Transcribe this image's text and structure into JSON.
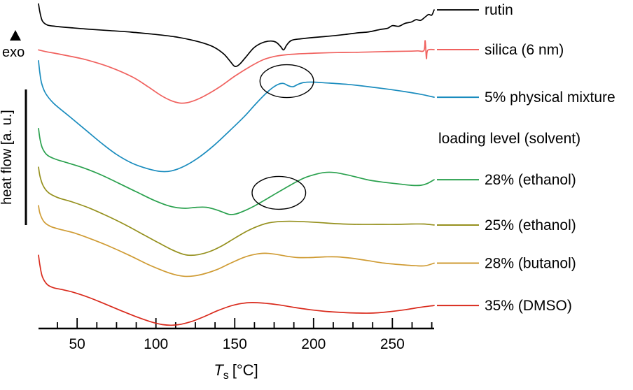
{
  "figure": {
    "exo_label": "exo",
    "heat_flow_label": "heat flow [a. u.]",
    "x_label_symbol": "T",
    "x_label_subscript": "s",
    "x_label_unit": "[°C]"
  },
  "chart_data": {
    "type": "line",
    "xlabel": "Ts [°C]",
    "ylabel": "heat flow [a. u.]",
    "exo_direction": "up",
    "grid": false,
    "legend_position": "right",
    "x_range": [
      25.5,
      276.5
    ],
    "y_range_au": [
      0,
      100
    ],
    "x_major_ticks": [
      50,
      100,
      150,
      200,
      250
    ],
    "x_minor_ticks_range": [
      37.5,
      275,
      12.5
    ],
    "legend_header": {
      "label": "loading level (solvent)",
      "after_index": 2
    },
    "annotations": [
      {
        "name": "ellipse-physical-mixture-melting",
        "cx": 183,
        "cy_au": 75.3,
        "rx_c": 17,
        "ry_au": 5
      },
      {
        "name": "ellipse-28-ethanol-region",
        "cx": 178,
        "cy_au": 41.3,
        "rx_c": 17,
        "ry_au": 5
      }
    ],
    "series": [
      {
        "name": "rutin",
        "label": "rutin",
        "color": "#000000",
        "points": [
          [
            25.5,
            98.8
          ],
          [
            26.5,
            96.0
          ],
          [
            28,
            93.6
          ],
          [
            31,
            92.4
          ],
          [
            36,
            92.0
          ],
          [
            45,
            91.6
          ],
          [
            55,
            91.2
          ],
          [
            70,
            90.7
          ],
          [
            85,
            90.2
          ],
          [
            100,
            89.5
          ],
          [
            112,
            88.8
          ],
          [
            122,
            87.9
          ],
          [
            130,
            86.9
          ],
          [
            137,
            85.6
          ],
          [
            143,
            83.6
          ],
          [
            147,
            81.4
          ],
          [
            150,
            79.8
          ],
          [
            153,
            80.4
          ],
          [
            157,
            82.6
          ],
          [
            162,
            85.4
          ],
          [
            167,
            86.9
          ],
          [
            172,
            87.5
          ],
          [
            176,
            87.2
          ],
          [
            179,
            85.9
          ],
          [
            181,
            84.8
          ],
          [
            183,
            86.3
          ],
          [
            186,
            87.7
          ],
          [
            192,
            88.2
          ],
          [
            200,
            88.6
          ],
          [
            210,
            89.0
          ],
          [
            220,
            89.5
          ],
          [
            228,
            90.0
          ],
          [
            235,
            90.3
          ],
          [
            242,
            91.0
          ],
          [
            247,
            91.4
          ],
          [
            250,
            92.2
          ],
          [
            254,
            92.0
          ],
          [
            258,
            92.9
          ],
          [
            262,
            93.3
          ],
          [
            265,
            94.0
          ],
          [
            268,
            93.8
          ],
          [
            271,
            94.9
          ],
          [
            273,
            95.6
          ],
          [
            275,
            95.4
          ],
          [
            276.5,
            97.0
          ]
        ]
      },
      {
        "name": "silica-6nm",
        "label": "silica (6 nm)",
        "color": "#f0615e",
        "points": [
          [
            25.5,
            84.8
          ],
          [
            30,
            84.3
          ],
          [
            40,
            83.4
          ],
          [
            55,
            81.9
          ],
          [
            70,
            79.7
          ],
          [
            85,
            76.6
          ],
          [
            95,
            73.6
          ],
          [
            103,
            71.0
          ],
          [
            110,
            69.3
          ],
          [
            116,
            68.6
          ],
          [
            122,
            69.0
          ],
          [
            130,
            70.6
          ],
          [
            140,
            73.4
          ],
          [
            150,
            76.8
          ],
          [
            160,
            79.8
          ],
          [
            168,
            81.8
          ],
          [
            175,
            82.8
          ],
          [
            182,
            83.3
          ],
          [
            190,
            83.6
          ],
          [
            200,
            83.8
          ],
          [
            215,
            84.0
          ],
          [
            230,
            84.1
          ],
          [
            245,
            84.3
          ],
          [
            258,
            84.4
          ],
          [
            266,
            84.5
          ],
          [
            270,
            84.6
          ],
          [
            270.8,
            87.6
          ],
          [
            271.6,
            82.2
          ],
          [
            272.4,
            84.7
          ],
          [
            276.5,
            84.9
          ]
        ]
      },
      {
        "name": "physical-mixture-5",
        "label": "5% physical mixture",
        "color": "#1a8cbe",
        "points": [
          [
            25.5,
            81.5
          ],
          [
            26.3,
            78.0
          ],
          [
            27.5,
            74.6
          ],
          [
            30,
            71.6
          ],
          [
            35,
            68.6
          ],
          [
            45,
            64.6
          ],
          [
            55,
            60.6
          ],
          [
            65,
            56.6
          ],
          [
            75,
            53.0
          ],
          [
            85,
            50.3
          ],
          [
            95,
            48.6
          ],
          [
            103,
            47.8
          ],
          [
            110,
            48.0
          ],
          [
            118,
            49.4
          ],
          [
            127,
            52.0
          ],
          [
            137,
            55.8
          ],
          [
            147,
            60.3
          ],
          [
            156,
            64.5
          ],
          [
            163,
            68.2
          ],
          [
            169,
            71.2
          ],
          [
            174,
            73.3
          ],
          [
            178,
            74.4
          ],
          [
            181,
            74.6
          ],
          [
            184,
            73.9
          ],
          [
            187,
            73.6
          ],
          [
            190,
            74.3
          ],
          [
            194,
            74.9
          ],
          [
            200,
            75.0
          ],
          [
            210,
            74.7
          ],
          [
            222,
            74.3
          ],
          [
            235,
            73.6
          ],
          [
            248,
            72.8
          ],
          [
            258,
            72.1
          ],
          [
            268,
            71.3
          ],
          [
            276.5,
            70.4
          ]
        ]
      },
      {
        "name": "loaded-28-ethanol",
        "label": "28% (ethanol)",
        "color": "#2aa14e",
        "points": [
          [
            25.5,
            60.9
          ],
          [
            26.5,
            57.5
          ],
          [
            28,
            54.9
          ],
          [
            31,
            52.8
          ],
          [
            36,
            51.6
          ],
          [
            44,
            50.4
          ],
          [
            54,
            48.9
          ],
          [
            65,
            46.8
          ],
          [
            76,
            44.3
          ],
          [
            88,
            41.5
          ],
          [
            98,
            39.2
          ],
          [
            107,
            37.5
          ],
          [
            113,
            36.8
          ],
          [
            119,
            36.6
          ],
          [
            126,
            36.9
          ],
          [
            132,
            36.9
          ],
          [
            138,
            36.2
          ],
          [
            143,
            35.3
          ],
          [
            147,
            34.7
          ],
          [
            151,
            34.9
          ],
          [
            156,
            35.8
          ],
          [
            162,
            37.2
          ],
          [
            168,
            38.8
          ],
          [
            174,
            40.5
          ],
          [
            180,
            42.2
          ],
          [
            187,
            44.1
          ],
          [
            194,
            45.8
          ],
          [
            201,
            46.9
          ],
          [
            207,
            47.5
          ],
          [
            213,
            47.5
          ],
          [
            220,
            46.9
          ],
          [
            228,
            46.0
          ],
          [
            236,
            45.1
          ],
          [
            245,
            44.5
          ],
          [
            254,
            44.0
          ],
          [
            262,
            43.6
          ],
          [
            268,
            43.6
          ],
          [
            272,
            44.1
          ],
          [
            276.5,
            45.3
          ]
        ]
      },
      {
        "name": "loaded-25-ethanol",
        "label": "25% (ethanol)",
        "color": "#95901d",
        "points": [
          [
            25.5,
            49.1
          ],
          [
            26.5,
            46.2
          ],
          [
            28.5,
            43.4
          ],
          [
            32,
            41.3
          ],
          [
            38,
            39.8
          ],
          [
            47,
            38.5
          ],
          [
            57,
            36.8
          ],
          [
            68,
            34.5
          ],
          [
            80,
            31.7
          ],
          [
            92,
            28.6
          ],
          [
            102,
            26.0
          ],
          [
            110,
            24.0
          ],
          [
            116,
            22.8
          ],
          [
            121,
            22.3
          ],
          [
            127,
            22.5
          ],
          [
            134,
            23.4
          ],
          [
            142,
            25.2
          ],
          [
            150,
            27.5
          ],
          [
            158,
            29.7
          ],
          [
            165,
            31.2
          ],
          [
            172,
            32.2
          ],
          [
            180,
            32.6
          ],
          [
            190,
            32.6
          ],
          [
            202,
            32.3
          ],
          [
            215,
            31.9
          ],
          [
            228,
            31.7
          ],
          [
            240,
            31.7
          ],
          [
            252,
            31.7
          ],
          [
            262,
            31.8
          ],
          [
            270,
            31.8
          ],
          [
            276.5,
            31.5
          ]
        ]
      },
      {
        "name": "loaded-28-butanol",
        "label": "28% (butanol)",
        "color": "#cf9b33",
        "points": [
          [
            25.5,
            37.4
          ],
          [
            26.5,
            34.9
          ],
          [
            29,
            32.5
          ],
          [
            33,
            31.1
          ],
          [
            39,
            30.2
          ],
          [
            48,
            29.1
          ],
          [
            58,
            27.4
          ],
          [
            70,
            25.1
          ],
          [
            83,
            22.3
          ],
          [
            95,
            19.5
          ],
          [
            105,
            17.5
          ],
          [
            112,
            16.4
          ],
          [
            118,
            15.9
          ],
          [
            124,
            16.0
          ],
          [
            131,
            16.7
          ],
          [
            139,
            18.0
          ],
          [
            147,
            19.8
          ],
          [
            155,
            21.5
          ],
          [
            162,
            22.5
          ],
          [
            169,
            22.9
          ],
          [
            176,
            22.6
          ],
          [
            183,
            22.0
          ],
          [
            190,
            21.6
          ],
          [
            198,
            21.6
          ],
          [
            207,
            21.8
          ],
          [
            215,
            21.8
          ],
          [
            224,
            21.4
          ],
          [
            234,
            20.7
          ],
          [
            245,
            19.9
          ],
          [
            256,
            19.4
          ],
          [
            265,
            19.1
          ],
          [
            271,
            19.1
          ],
          [
            276.5,
            19.9
          ]
        ]
      },
      {
        "name": "loaded-35-dmso",
        "label": "35% (DMSO)",
        "color": "#d92a1c",
        "points": [
          [
            25.5,
            22.3
          ],
          [
            26.5,
            18.9
          ],
          [
            28,
            15.7
          ],
          [
            31,
            13.4
          ],
          [
            35,
            12.4
          ],
          [
            40,
            11.9
          ],
          [
            47,
            11.1
          ],
          [
            56,
            9.7
          ],
          [
            66,
            7.8
          ],
          [
            77,
            5.6
          ],
          [
            88,
            3.5
          ],
          [
            97,
            2.0
          ],
          [
            104,
            1.2
          ],
          [
            110,
            1.0
          ],
          [
            116,
            1.3
          ],
          [
            123,
            2.2
          ],
          [
            131,
            3.7
          ],
          [
            139,
            5.4
          ],
          [
            147,
            6.8
          ],
          [
            154,
            7.6
          ],
          [
            161,
            7.9
          ],
          [
            169,
            7.7
          ],
          [
            178,
            7.2
          ],
          [
            188,
            6.4
          ],
          [
            198,
            5.7
          ],
          [
            208,
            5.2
          ],
          [
            218,
            4.9
          ],
          [
            228,
            4.7
          ],
          [
            238,
            4.7
          ],
          [
            248,
            5.1
          ],
          [
            258,
            5.7
          ],
          [
            267,
            6.4
          ],
          [
            276.5,
            7.0
          ]
        ]
      }
    ]
  }
}
